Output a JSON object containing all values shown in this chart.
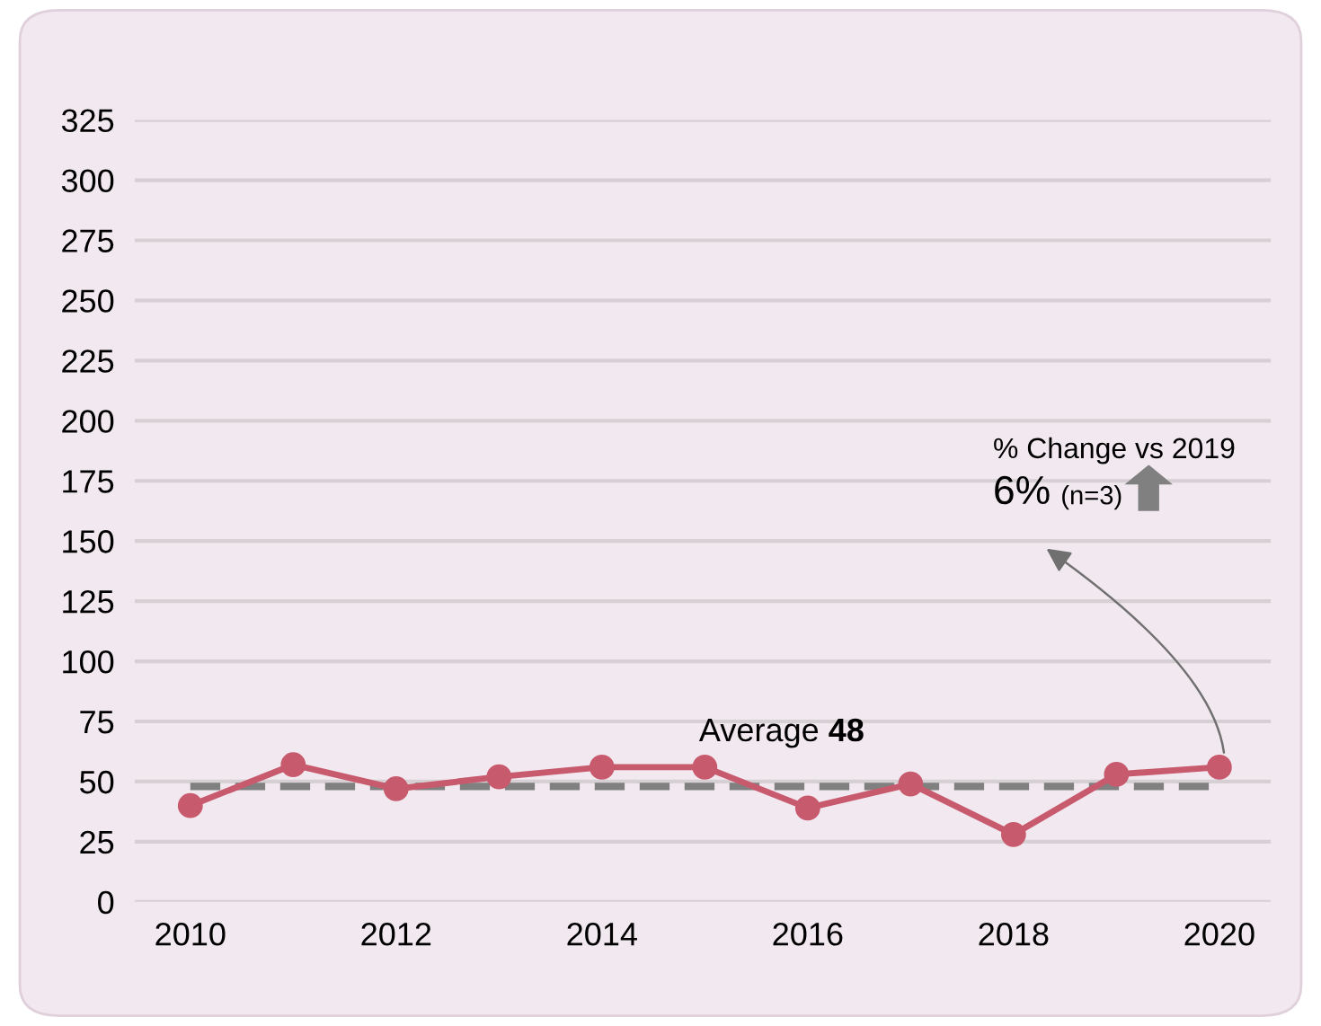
{
  "chart_data": {
    "type": "line",
    "x": [
      2010,
      2011,
      2012,
      2013,
      2014,
      2015,
      2016,
      2017,
      2018,
      2019,
      2020
    ],
    "series": [
      {
        "color": "#c85a6e",
        "values": [
          40,
          57,
          47,
          52,
          56,
          56,
          39,
          49,
          28,
          53,
          56
        ]
      }
    ],
    "xlim": [
      2009.46,
      2020.5
    ],
    "xticks": [
      2010,
      2012,
      2014,
      2016,
      2018,
      2020
    ],
    "ylim": [
      0,
      325
    ],
    "yticks": [
      0,
      25,
      50,
      75,
      100,
      125,
      150,
      175,
      200,
      225,
      250,
      275,
      300,
      325
    ],
    "grid": "y",
    "marker": "circle",
    "line_style": "solid",
    "ref_lines": [
      {
        "axis": "y",
        "value": 48,
        "label": "Average 48",
        "color": "#808080",
        "line_style": "dashed"
      }
    ],
    "annotations": [
      "% Change vs 2019",
      "6%",
      "(n=3)"
    ]
  }
}
